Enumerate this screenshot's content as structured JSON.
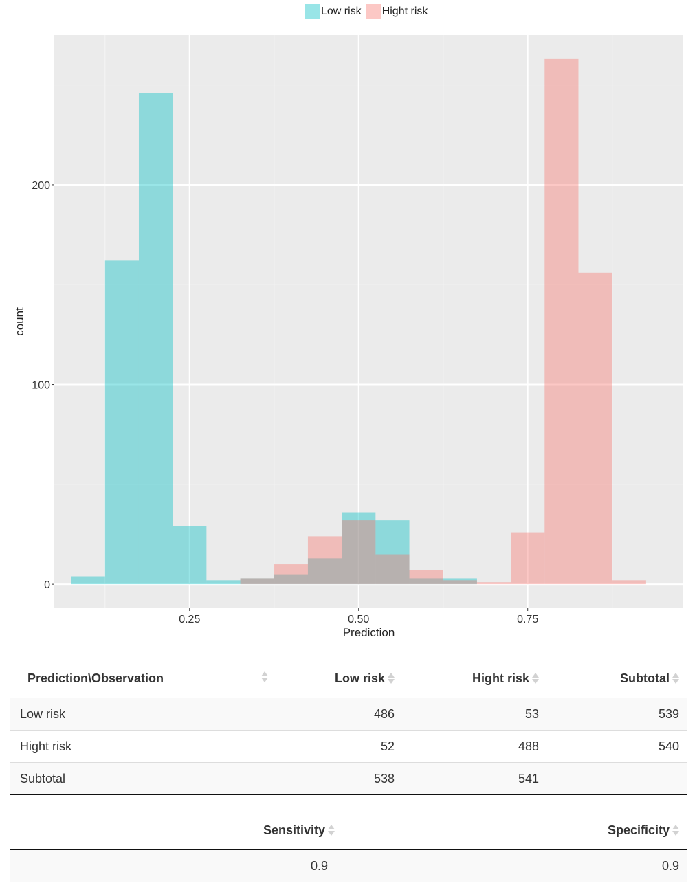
{
  "colors": {
    "low_risk": "#00BFC4",
    "hight_risk": "#F8766D",
    "panel": "#EBEBEB",
    "grid": "#FFFFFF"
  },
  "chart_data": {
    "type": "histogram",
    "xlabel": "Prediction",
    "ylabel": "count",
    "xlim": [
      0.05,
      0.98
    ],
    "ylim": [
      -12,
      275
    ],
    "x_ticks": [
      0.25,
      0.5,
      0.75
    ],
    "x_tick_labels": [
      "0.25",
      "0.50",
      "0.75"
    ],
    "y_ticks": [
      0,
      100,
      200
    ],
    "y_tick_labels": [
      "0",
      "100",
      "200"
    ],
    "grid": true,
    "legend_position": "top",
    "bin_width": 0.05,
    "bin_starts": [
      0.075,
      0.125,
      0.175,
      0.225,
      0.275,
      0.325,
      0.375,
      0.425,
      0.475,
      0.525,
      0.575,
      0.625,
      0.675,
      0.725,
      0.775,
      0.825,
      0.875
    ],
    "series": [
      {
        "name": "Low risk",
        "values": [
          4,
          162,
          246,
          29,
          2,
          3,
          5,
          13,
          36,
          32,
          3,
          3,
          0,
          0,
          0,
          0,
          0
        ]
      },
      {
        "name": "Hight risk",
        "values": [
          0,
          0,
          0,
          0,
          0,
          3,
          10,
          24,
          32,
          15,
          7,
          2,
          1,
          26,
          263,
          156,
          2
        ]
      }
    ]
  },
  "legend": {
    "items": [
      "Low risk",
      "Hight risk"
    ]
  },
  "confusion_table": {
    "headers": [
      "Prediction\\Observation",
      "Low risk",
      "Hight risk",
      "Subtotal"
    ],
    "rows": [
      [
        "Low risk",
        "486",
        "53",
        "539"
      ],
      [
        "Hight risk",
        "52",
        "488",
        "540"
      ],
      [
        "Subtotal",
        "538",
        "541",
        ""
      ]
    ]
  },
  "metrics_table": {
    "headers": [
      "Sensitivity",
      "Specificity"
    ],
    "rows": [
      [
        "0.9",
        "0.9"
      ]
    ]
  }
}
